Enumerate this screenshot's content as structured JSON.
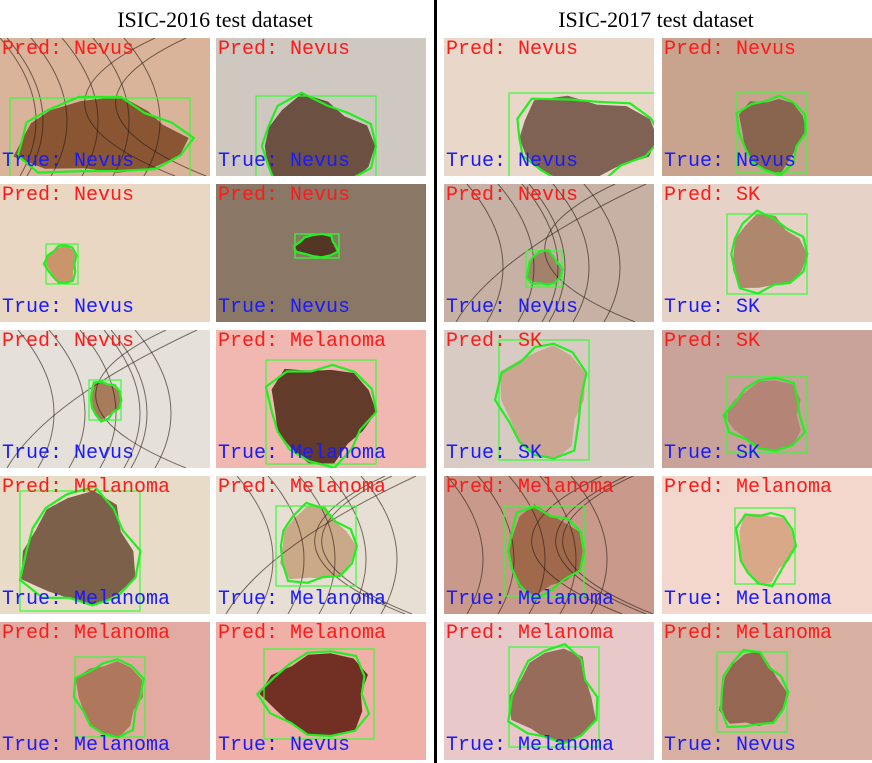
{
  "titles": {
    "left": "ISIC-2016 test dataset",
    "right": "ISIC-2017 test dataset"
  },
  "colors": {
    "pred": "#ff1a1a",
    "true": "#1a1aff",
    "box": "#33ff33",
    "contour": "#22ee22"
  },
  "tiles": [
    {
      "pred": "Pred: Nevus",
      "true": "True: Nevus",
      "skin": "#d9b49a",
      "lesion": "#7a4420",
      "hair": true
    },
    {
      "pred": "Pred: Nevus",
      "true": "True: Nevus",
      "skin": "#cfc8c0",
      "lesion": "#5a3c2c",
      "hair": false
    },
    {
      "pred": "Pred: Nevus",
      "true": "True: Nevus",
      "skin": "#e9d8c9",
      "lesion": "#6c4d3e",
      "hair": false
    },
    {
      "pred": "Pred: Nevus",
      "true": "True: Nevus",
      "skin": "#c8a48e",
      "lesion": "#7e5a44",
      "hair": false
    },
    {
      "pred": "Pred: Nevus",
      "true": "True: Nevus",
      "skin": "#e9d6c3",
      "lesion": "#c48a5c",
      "hair": false
    },
    {
      "pred": "Pred: Nevus",
      "true": "True: Nevus",
      "skin": "#8a7766",
      "lesion": "#4a2a1a",
      "hair": false
    },
    {
      "pred": "Pred: Nevus",
      "true": "True: Nevus",
      "skin": "#c6b1a4",
      "lesion": "#9c7a62",
      "hair": true
    },
    {
      "pred": "Pred: SK",
      "true": "True: SK",
      "skin": "#e6d2c6",
      "lesion": "#a57a5c",
      "hair": false
    },
    {
      "pred": "Pred: Nevus",
      "true": "True: Nevus",
      "skin": "#e6e0da",
      "lesion": "#9a6a44",
      "hair": true
    },
    {
      "pred": "Pred: Melanoma",
      "true": "True: Melanoma",
      "skin": "#f0b8b0",
      "lesion": "#4a2414",
      "hair": false
    },
    {
      "pred": "Pred: SK",
      "true": "True: SK",
      "skin": "#d8cbc4",
      "lesion": "#c9a08a",
      "hair": false
    },
    {
      "pred": "Pred: SK",
      "true": "True: SK",
      "skin": "#c9a39a",
      "lesion": "#b08070",
      "hair": false
    },
    {
      "pred": "Pred: Melanoma",
      "true": "True: Melanoma",
      "skin": "#e8dcc8",
      "lesion": "#6a4a32",
      "hair": false
    },
    {
      "pred": "Pred: Melanoma",
      "true": "True: Melanoma",
      "skin": "#e8dfd4",
      "lesion": "#c4a07a",
      "hair": true
    },
    {
      "pred": "Pred: Melanoma",
      "true": "True: Melanoma",
      "skin": "#c99a8c",
      "lesion": "#9a6040",
      "hair": true
    },
    {
      "pred": "Pred: Melanoma",
      "true": "True: Melanoma",
      "skin": "#f3d6cc",
      "lesion": "#d4a07c",
      "hair": false
    },
    {
      "pred": "Pred: Melanoma",
      "true": "True: Melanoma",
      "skin": "#e3aaa2",
      "lesion": "#a67050",
      "hair": false
    },
    {
      "pred": "Pred: Melanoma",
      "true": "True: Nevus",
      "skin": "#f0b0a8",
      "lesion": "#5a1a0c",
      "hair": false
    },
    {
      "pred": "Pred: Melanoma",
      "true": "True: Melanoma",
      "skin": "#e8c8c8",
      "lesion": "#8a5c48",
      "hair": false
    },
    {
      "pred": "Pred: Melanoma",
      "true": "True: Nevus",
      "skin": "#d8b0a2",
      "lesion": "#8a5a44",
      "hair": false
    }
  ]
}
